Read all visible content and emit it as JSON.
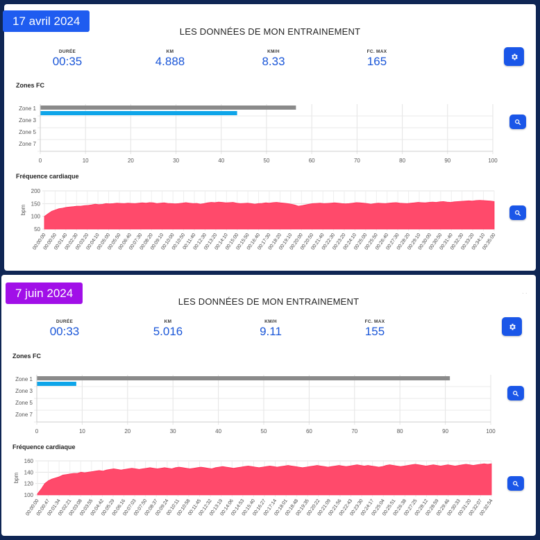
{
  "sessions": [
    {
      "date": "17 avril 2024",
      "badge_color": "#1f5cf0",
      "title": "LES DONNÉES DE MON ENTRAINEMENT",
      "stats": [
        {
          "label": "DURÉE",
          "value": "00:35"
        },
        {
          "label": "KM",
          "value": "4.888"
        },
        {
          "label": "KM/H",
          "value": "8.33"
        },
        {
          "label": "FC. MAX",
          "value": "165"
        }
      ],
      "zones_title": "Zones FC",
      "hr_title": "Fréquence cardiaque"
    },
    {
      "date": "7 juin 2024",
      "badge_color": "#a10fe8",
      "title": "LES DONNÉES DE MON ENTRAINEMENT",
      "stats": [
        {
          "label": "DURÉE",
          "value": "00:33"
        },
        {
          "label": "KM",
          "value": "5.016"
        },
        {
          "label": "KM/H",
          "value": "9.11"
        },
        {
          "label": "FC. MAX",
          "value": "155"
        }
      ],
      "zones_title": "Zones FC",
      "hr_title": "Fréquence cardiaque"
    }
  ],
  "icons": {
    "settings": "gear-icon",
    "zoom": "search-icon"
  },
  "colors": {
    "zone_gray": "#8a8a8a",
    "zone_blue": "#0ea5e9",
    "hr_fill": "#ff4a6b",
    "accent": "#1a56e8"
  },
  "chart_data": [
    {
      "type": "bar",
      "orientation": "horizontal",
      "title": "Zones FC",
      "categories": [
        "Zone 1",
        "Zone 3",
        "Zone 5",
        "Zone 7"
      ],
      "series": [
        {
          "values": [
            56.5,
            0,
            0,
            0
          ]
        },
        {
          "values": [
            43.5,
            0,
            0,
            0
          ]
        }
      ],
      "xlim": [
        0,
        100
      ],
      "x_ticks": [
        0,
        10,
        20,
        30,
        40,
        50,
        60,
        70,
        80,
        90,
        100
      ],
      "grid": true
    },
    {
      "type": "area",
      "title": "Fréquence cardiaque",
      "ylabel": "bpm",
      "ylim": [
        50,
        200
      ],
      "y_ticks": [
        50,
        100,
        150,
        200
      ],
      "x_ticks": [
        "00:00:00",
        "00:00:50",
        "00:01:40",
        "00:02:30",
        "00:03:20",
        "00:04:10",
        "00:05:00",
        "00:05:50",
        "00:06:40",
        "00:07:30",
        "00:08:20",
        "00:09:10",
        "00:10:00",
        "00:10:50",
        "00:11:40",
        "00:12:30",
        "00:13:20",
        "00:14:10",
        "00:15:00",
        "00:15:50",
        "00:16:40",
        "00:17:30",
        "00:18:20",
        "00:19:10",
        "00:20:00",
        "00:20:50",
        "00:21:40",
        "00:22:30",
        "00:23:20",
        "00:24:10",
        "00:25:00",
        "00:25:50",
        "00:26:40",
        "00:27:30",
        "00:28:20",
        "00:29:10",
        "00:30:00",
        "00:30:50",
        "00:31:40",
        "00:32:30",
        "00:33:20",
        "00:34:10",
        "00:35:00"
      ],
      "values": [
        100,
        110,
        120,
        125,
        130,
        132,
        135,
        137,
        138,
        140,
        140,
        142,
        143,
        145,
        148,
        146,
        147,
        150,
        149,
        150,
        152,
        151,
        150,
        152,
        151,
        150,
        152,
        153,
        152,
        154,
        153,
        150,
        152,
        153,
        151,
        150,
        149,
        150,
        152,
        154,
        152,
        150,
        151,
        148,
        150,
        153,
        155,
        154,
        156,
        155,
        153,
        154,
        155,
        152,
        150,
        151,
        152,
        150,
        148,
        150,
        151,
        153,
        152,
        154,
        155,
        153,
        152,
        150,
        148,
        145,
        140,
        142,
        145,
        148,
        150,
        151,
        152,
        150,
        151,
        152,
        153,
        152,
        150,
        149,
        150,
        152,
        154,
        153,
        152,
        150,
        148,
        150,
        152,
        151,
        150,
        152,
        153,
        154,
        152,
        151,
        150,
        152,
        153,
        155,
        154,
        153,
        155,
        156,
        155,
        157,
        158,
        156,
        155,
        157,
        158,
        159,
        160,
        161,
        160,
        162,
        163,
        162,
        161,
        160,
        158
      ],
      "grid": true
    },
    {
      "type": "bar",
      "orientation": "horizontal",
      "title": "Zones FC",
      "categories": [
        "Zone 1",
        "Zone 3",
        "Zone 5",
        "Zone 7"
      ],
      "series": [
        {
          "values": [
            91,
            0,
            0,
            0
          ]
        },
        {
          "values": [
            8.7,
            0,
            0,
            0
          ]
        }
      ],
      "xlim": [
        0,
        100
      ],
      "x_ticks": [
        0,
        10,
        20,
        30,
        40,
        50,
        60,
        70,
        80,
        90,
        100
      ],
      "grid": true
    },
    {
      "type": "area",
      "title": "Fréquence cardiaque",
      "ylabel": "bpm",
      "ylim": [
        100,
        160
      ],
      "y_ticks": [
        100,
        120,
        140,
        160
      ],
      "x_ticks": [
        "00:00:00",
        "00:00:47",
        "00:01:34",
        "00:02:21",
        "00:03:08",
        "00:03:55",
        "00:04:42",
        "00:05:29",
        "00:06:16",
        "00:07:03",
        "00:07:50",
        "00:08:37",
        "00:09:24",
        "00:10:11",
        "00:10:58",
        "00:11:45",
        "00:12:32",
        "00:13:19",
        "00:14:06",
        "00:14:53",
        "00:15:40",
        "00:16:27",
        "00:17:14",
        "00:18:01",
        "00:18:48",
        "00:19:35",
        "00:20:22",
        "00:21:09",
        "00:21:56",
        "00:22:43",
        "00:23:30",
        "00:24:17",
        "00:25:04",
        "00:25:51",
        "00:26:38",
        "00:27:25",
        "00:28:12",
        "00:28:59",
        "00:29:46",
        "00:30:33",
        "00:31:20",
        "00:32:07",
        "00:32:54"
      ],
      "values": [
        102,
        110,
        120,
        125,
        128,
        130,
        132,
        135,
        136,
        137,
        138,
        138,
        140,
        139,
        140,
        141,
        142,
        143,
        142,
        144,
        145,
        146,
        145,
        144,
        145,
        146,
        147,
        146,
        145,
        146,
        147,
        148,
        147,
        146,
        147,
        148,
        147,
        146,
        148,
        149,
        148,
        147,
        146,
        147,
        148,
        149,
        148,
        147,
        146,
        148,
        149,
        150,
        149,
        148,
        147,
        148,
        149,
        150,
        151,
        150,
        149,
        148,
        149,
        150,
        151,
        150,
        149,
        150,
        151,
        152,
        151,
        150,
        149,
        148,
        149,
        150,
        151,
        152,
        151,
        150,
        149,
        150,
        151,
        152,
        151,
        150,
        151,
        152,
        153,
        152,
        151,
        152,
        151,
        150,
        149,
        150,
        152,
        153,
        152,
        151,
        150,
        151,
        152,
        153,
        154,
        153,
        152,
        151,
        152,
        153,
        152,
        151,
        152,
        153,
        152,
        151,
        152,
        153,
        154,
        153,
        152,
        153,
        154,
        155,
        154,
        155
      ]
    }
  ]
}
